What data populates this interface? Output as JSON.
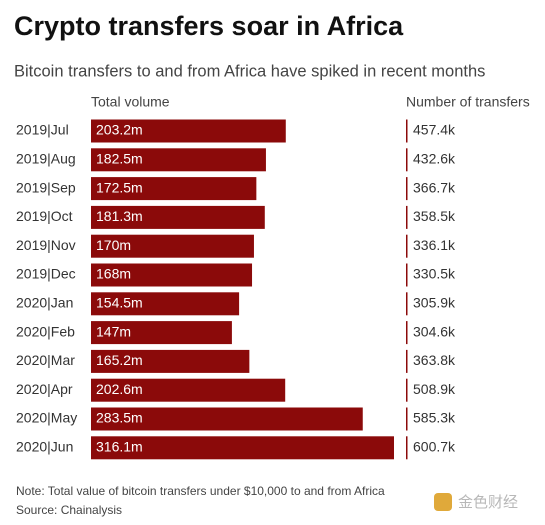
{
  "chart_data": {
    "type": "bar",
    "title": "Crypto transfers soar in Africa",
    "subtitle": "Bitcoin transfers to and from Africa have spiked in recent months",
    "categories": [
      "2019|Jul",
      "2019|Aug",
      "2019|Sep",
      "2019|Oct",
      "2019|Nov",
      "2019|Dec",
      "2020|Jan",
      "2020|Feb",
      "2020|Mar",
      "2020|Apr",
      "2020|May",
      "2020|Jun"
    ],
    "series": [
      {
        "name": "Total volume",
        "color": "#8b0a0a",
        "values": [
          203.2,
          182.5,
          172.5,
          181.3,
          170,
          168,
          154.5,
          147,
          165.2,
          202.6,
          283.5,
          316.1
        ],
        "value_labels": [
          "203.2m",
          "182.5m",
          "172.5m",
          "181.3m",
          "170m",
          "168m",
          "154.5m",
          "147m",
          "165.2m",
          "202.6m",
          "283.5m",
          "316.1m"
        ]
      },
      {
        "name": "Number of transfers",
        "color": "#8b0a0a",
        "values": [
          457.4,
          432.6,
          366.7,
          358.5,
          336.1,
          330.5,
          305.9,
          304.6,
          363.8,
          508.9,
          585.3,
          600.7
        ],
        "value_labels": [
          "457.4k",
          "432.6k",
          "366.7k",
          "358.5k",
          "336.1k",
          "330.5k",
          "305.9k",
          "304.6k",
          "363.8k",
          "508.9k",
          "585.3k",
          "600.7k"
        ]
      }
    ],
    "note": "Note: Total value of bitcoin transfers under $10,000 to and from Africa",
    "source": "Source: Chainalysis",
    "watermark": "金色财经"
  }
}
